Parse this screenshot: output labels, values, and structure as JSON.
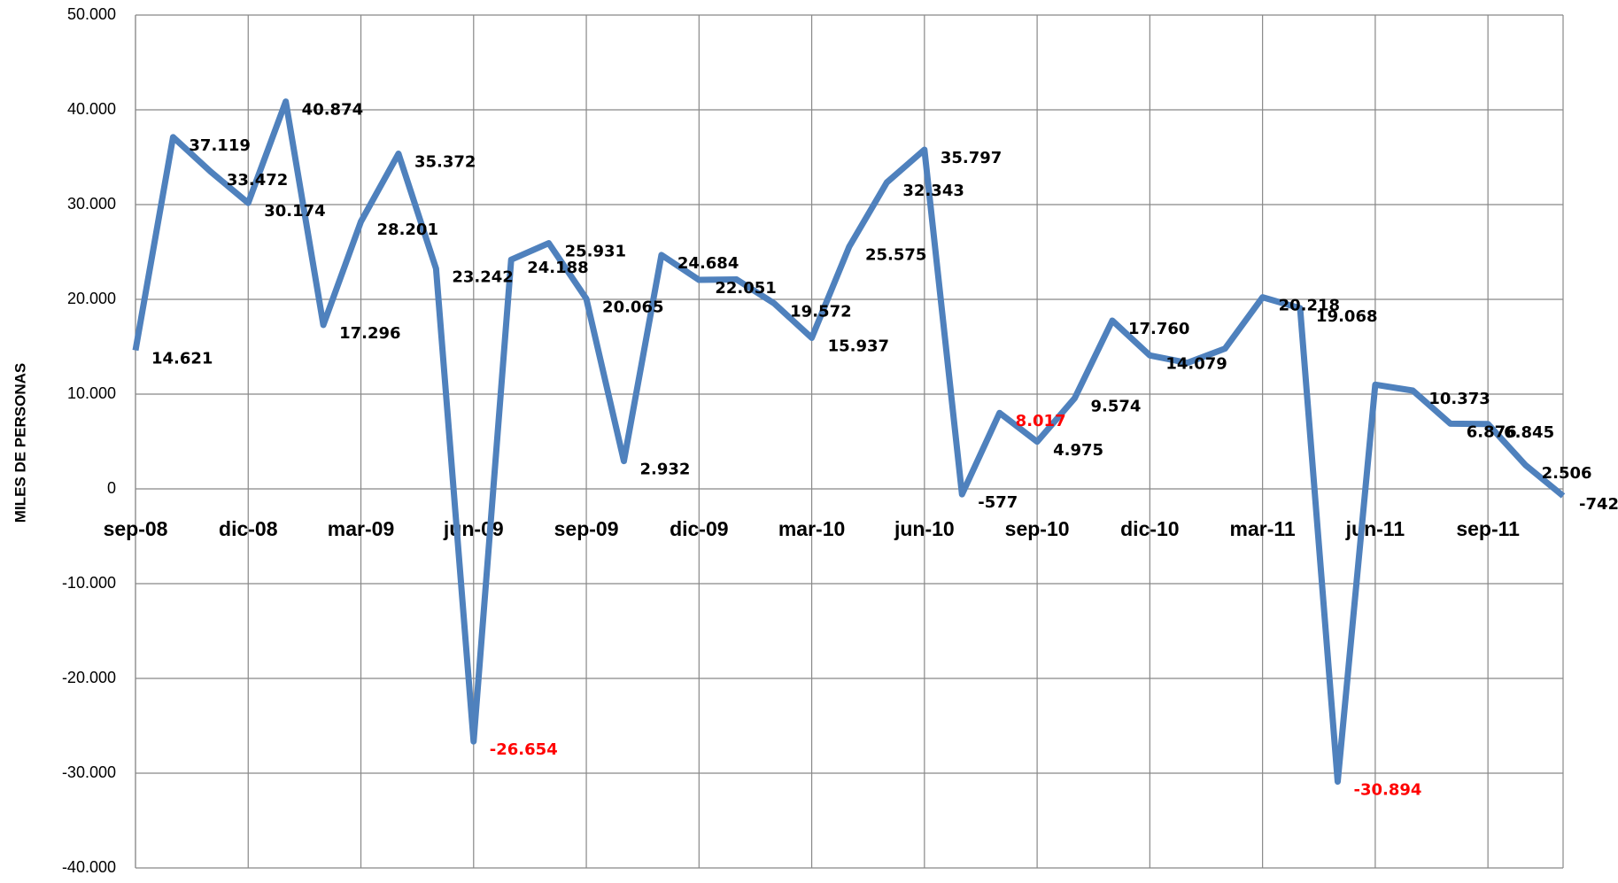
{
  "chart_data": {
    "type": "line",
    "y_label": "MILES DE PERSONAS",
    "categories": [
      "sep-08",
      null,
      null,
      "dic-08",
      null,
      null,
      "mar-09",
      null,
      null,
      "jun-09",
      null,
      null,
      "sep-09",
      null,
      null,
      "dic-09",
      null,
      null,
      "mar-10",
      null,
      null,
      "jun-10",
      null,
      null,
      "sep-10",
      null,
      null,
      "dic-10",
      null,
      null,
      "mar-11",
      null,
      null,
      "jun-11",
      null,
      null,
      "sep-11",
      null,
      null
    ],
    "values": [
      14621,
      37119,
      33472,
      30174,
      40874,
      17296,
      28201,
      35372,
      23242,
      -26654,
      24188,
      25931,
      20065,
      2932,
      24684,
      22051,
      22100,
      19572,
      15937,
      25575,
      32343,
      35797,
      -577,
      8017,
      4975,
      9574,
      17760,
      14079,
      13300,
      14800,
      20218,
      19068,
      -30894,
      11000,
      10373,
      6876,
      6845,
      2506,
      -742
    ],
    "value_labels": [
      "14.621",
      "37.119",
      "33.472",
      "30.174",
      "40.874",
      "17.296",
      "28.201",
      "35.372",
      "23.242",
      "-26.654",
      "24.188",
      "25.931",
      "20.065",
      "2.932",
      "24.684",
      "22.051",
      null,
      "19.572",
      "15.937",
      "25.575",
      "32.343",
      "35.797",
      "-577",
      "8.017",
      "4.975",
      "9.574",
      "17.760",
      "14.079",
      null,
      null,
      "20.218",
      "19.068",
      "-30.894",
      null,
      "10.373",
      "6.876",
      "6.845",
      "2.506",
      "-742"
    ],
    "value_label_colors": [
      "#000000",
      "#000000",
      "#000000",
      "#000000",
      "#000000",
      "#000000",
      "#000000",
      "#000000",
      "#000000",
      "#ff0000",
      "#000000",
      "#000000",
      "#000000",
      "#000000",
      "#000000",
      "#000000",
      "#000000",
      "#000000",
      "#000000",
      "#000000",
      "#000000",
      "#000000",
      "#000000",
      "#ff0000",
      "#000000",
      "#000000",
      "#000000",
      "#000000",
      "#000000",
      "#000000",
      "#000000",
      "#000000",
      "#ff0000",
      "#000000",
      "#000000",
      "#000000",
      "#000000",
      "#000000",
      "#000000"
    ],
    "color": "#4f81bd",
    "ylim": [
      -40000,
      50000
    ],
    "yticks": [
      {
        "value": -40000,
        "label": "-40.000"
      },
      {
        "value": -30000,
        "label": "-30.000"
      },
      {
        "value": -20000,
        "label": "-20.000"
      },
      {
        "value": -10000,
        "label": "-10.000"
      },
      0,
      {
        "value": 10000,
        "label": "10.000"
      },
      {
        "value": 20000,
        "label": "20.000"
      },
      {
        "value": 30000,
        "label": "30.000"
      },
      {
        "value": 40000,
        "label": "40.000"
      },
      {
        "value": 50000,
        "label": "50.000"
      }
    ],
    "grid": true
  }
}
